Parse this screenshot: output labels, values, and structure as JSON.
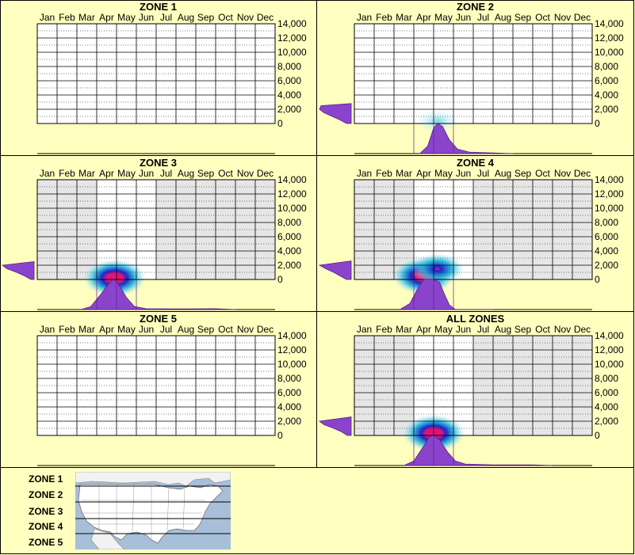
{
  "chart_data": {
    "type": "heatmap",
    "months": [
      "Jan",
      "Feb",
      "Mar",
      "Apr",
      "May",
      "Jun",
      "Jul",
      "Aug",
      "Sep",
      "Oct",
      "Nov",
      "Dec"
    ],
    "y_ticks": [
      "14,000",
      "12,000",
      "10,000",
      "8,000",
      "6,000",
      "4,000",
      "2,000",
      "0"
    ],
    "ylim": [
      0,
      14000
    ],
    "panels": [
      {
        "title": "ZONE 1",
        "has_data": false,
        "shaded_months": [],
        "hotspots": [],
        "month_profile": [],
        "elevation_profile": []
      },
      {
        "title": "ZONE 2",
        "has_data": true,
        "shaded_months": [],
        "hotspots": [
          {
            "month": 4.2,
            "elev": 300,
            "intensity": 0.35
          }
        ],
        "month_profile": [
          [
            3.3,
            0
          ],
          [
            3.7,
            0.25
          ],
          [
            4.0,
            0.85
          ],
          [
            4.2,
            1.0
          ],
          [
            4.45,
            0.9
          ],
          [
            4.8,
            0.45
          ],
          [
            5.2,
            0.15
          ],
          [
            5.8,
            0.05
          ],
          [
            7,
            0.02
          ],
          [
            8,
            0
          ]
        ],
        "elevation_profile": [
          [
            0,
            0.15
          ],
          [
            500,
            0.35
          ],
          [
            1000,
            0.6
          ],
          [
            1500,
            0.85
          ],
          [
            2000,
            1.0
          ],
          [
            2500,
            0.95
          ],
          [
            2800,
            0
          ]
        ]
      },
      {
        "title": "ZONE 3",
        "has_data": true,
        "shaded_months": [
          0,
          1,
          2,
          6,
          7,
          8,
          9,
          10,
          11
        ],
        "hotspots": [
          {
            "month": 3.9,
            "elev": 200,
            "intensity": 1.0
          }
        ],
        "month_profile": [
          [
            2.2,
            0
          ],
          [
            2.7,
            0.1
          ],
          [
            3.2,
            0.5
          ],
          [
            3.6,
            0.85
          ],
          [
            3.85,
            1.0
          ],
          [
            4.1,
            0.85
          ],
          [
            4.5,
            0.4
          ],
          [
            4.9,
            0.1
          ],
          [
            5.5,
            0.03
          ],
          [
            7,
            0.02
          ],
          [
            9,
            0.03
          ],
          [
            10,
            0
          ]
        ],
        "elevation_profile": [
          [
            0,
            0.1
          ],
          [
            500,
            0.3
          ],
          [
            1000,
            0.55
          ],
          [
            1500,
            0.85
          ],
          [
            2000,
            1.0
          ],
          [
            2500,
            0
          ]
        ]
      },
      {
        "title": "ZONE 4",
        "has_data": true,
        "shaded_months": [
          0,
          1,
          2,
          6,
          7,
          8,
          9,
          10,
          11
        ],
        "hotspots": [
          {
            "month": 3.5,
            "elev": 500,
            "intensity": 1.0
          },
          {
            "month": 4.2,
            "elev": 1500,
            "intensity": 0.7
          }
        ],
        "month_profile": [
          [
            2.3,
            0
          ],
          [
            2.8,
            0.2
          ],
          [
            3.2,
            0.7
          ],
          [
            3.5,
            1.0
          ],
          [
            4.0,
            1.0
          ],
          [
            4.3,
            0.9
          ],
          [
            4.55,
            0.5
          ],
          [
            4.8,
            0.15
          ],
          [
            5.1,
            0
          ],
          [
            7,
            0
          ]
        ],
        "elevation_profile": [
          [
            0,
            0.15
          ],
          [
            500,
            0.35
          ],
          [
            1000,
            0.55
          ],
          [
            1500,
            0.8
          ],
          [
            2000,
            1.0
          ],
          [
            2600,
            0
          ]
        ]
      },
      {
        "title": "ZONE 5",
        "has_data": false,
        "shaded_months": [],
        "hotspots": [],
        "month_profile": [],
        "elevation_profile": []
      },
      {
        "title": "ALL ZONES",
        "has_data": true,
        "shaded_months": [
          0,
          1,
          2,
          6,
          7,
          8,
          9,
          10,
          11
        ],
        "hotspots": [
          {
            "month": 4.0,
            "elev": 300,
            "intensity": 1.0
          }
        ],
        "month_profile": [
          [
            2.5,
            0
          ],
          [
            3.0,
            0.15
          ],
          [
            3.4,
            0.55
          ],
          [
            3.8,
            0.95
          ],
          [
            4.0,
            1.0
          ],
          [
            4.3,
            0.85
          ],
          [
            4.7,
            0.45
          ],
          [
            5.1,
            0.15
          ],
          [
            5.6,
            0.05
          ],
          [
            7,
            0.02
          ],
          [
            9,
            0.02
          ],
          [
            10,
            0
          ]
        ],
        "elevation_profile": [
          [
            0,
            0.12
          ],
          [
            500,
            0.3
          ],
          [
            1000,
            0.55
          ],
          [
            1500,
            0.85
          ],
          [
            2000,
            1.0
          ],
          [
            2600,
            0
          ]
        ]
      }
    ]
  },
  "legend": {
    "zones": [
      "ZONE 1",
      "ZONE 2",
      "ZONE 3",
      "ZONE 4",
      "ZONE 5"
    ]
  },
  "colors": {
    "background": "#ffffc0",
    "plot_bg": "#ffffff",
    "shaded_bg": "#e6e6e6",
    "profile_fill": "#8a44cc",
    "profile_stroke": "#5a1e8c",
    "heat_outer": "#bfeff7",
    "heat_mid": "#25b8dd",
    "heat_blue": "#1a2bcc",
    "heat_core": "#e0137a",
    "map_land": "#ffffff",
    "map_water": "#a7bfd9"
  }
}
